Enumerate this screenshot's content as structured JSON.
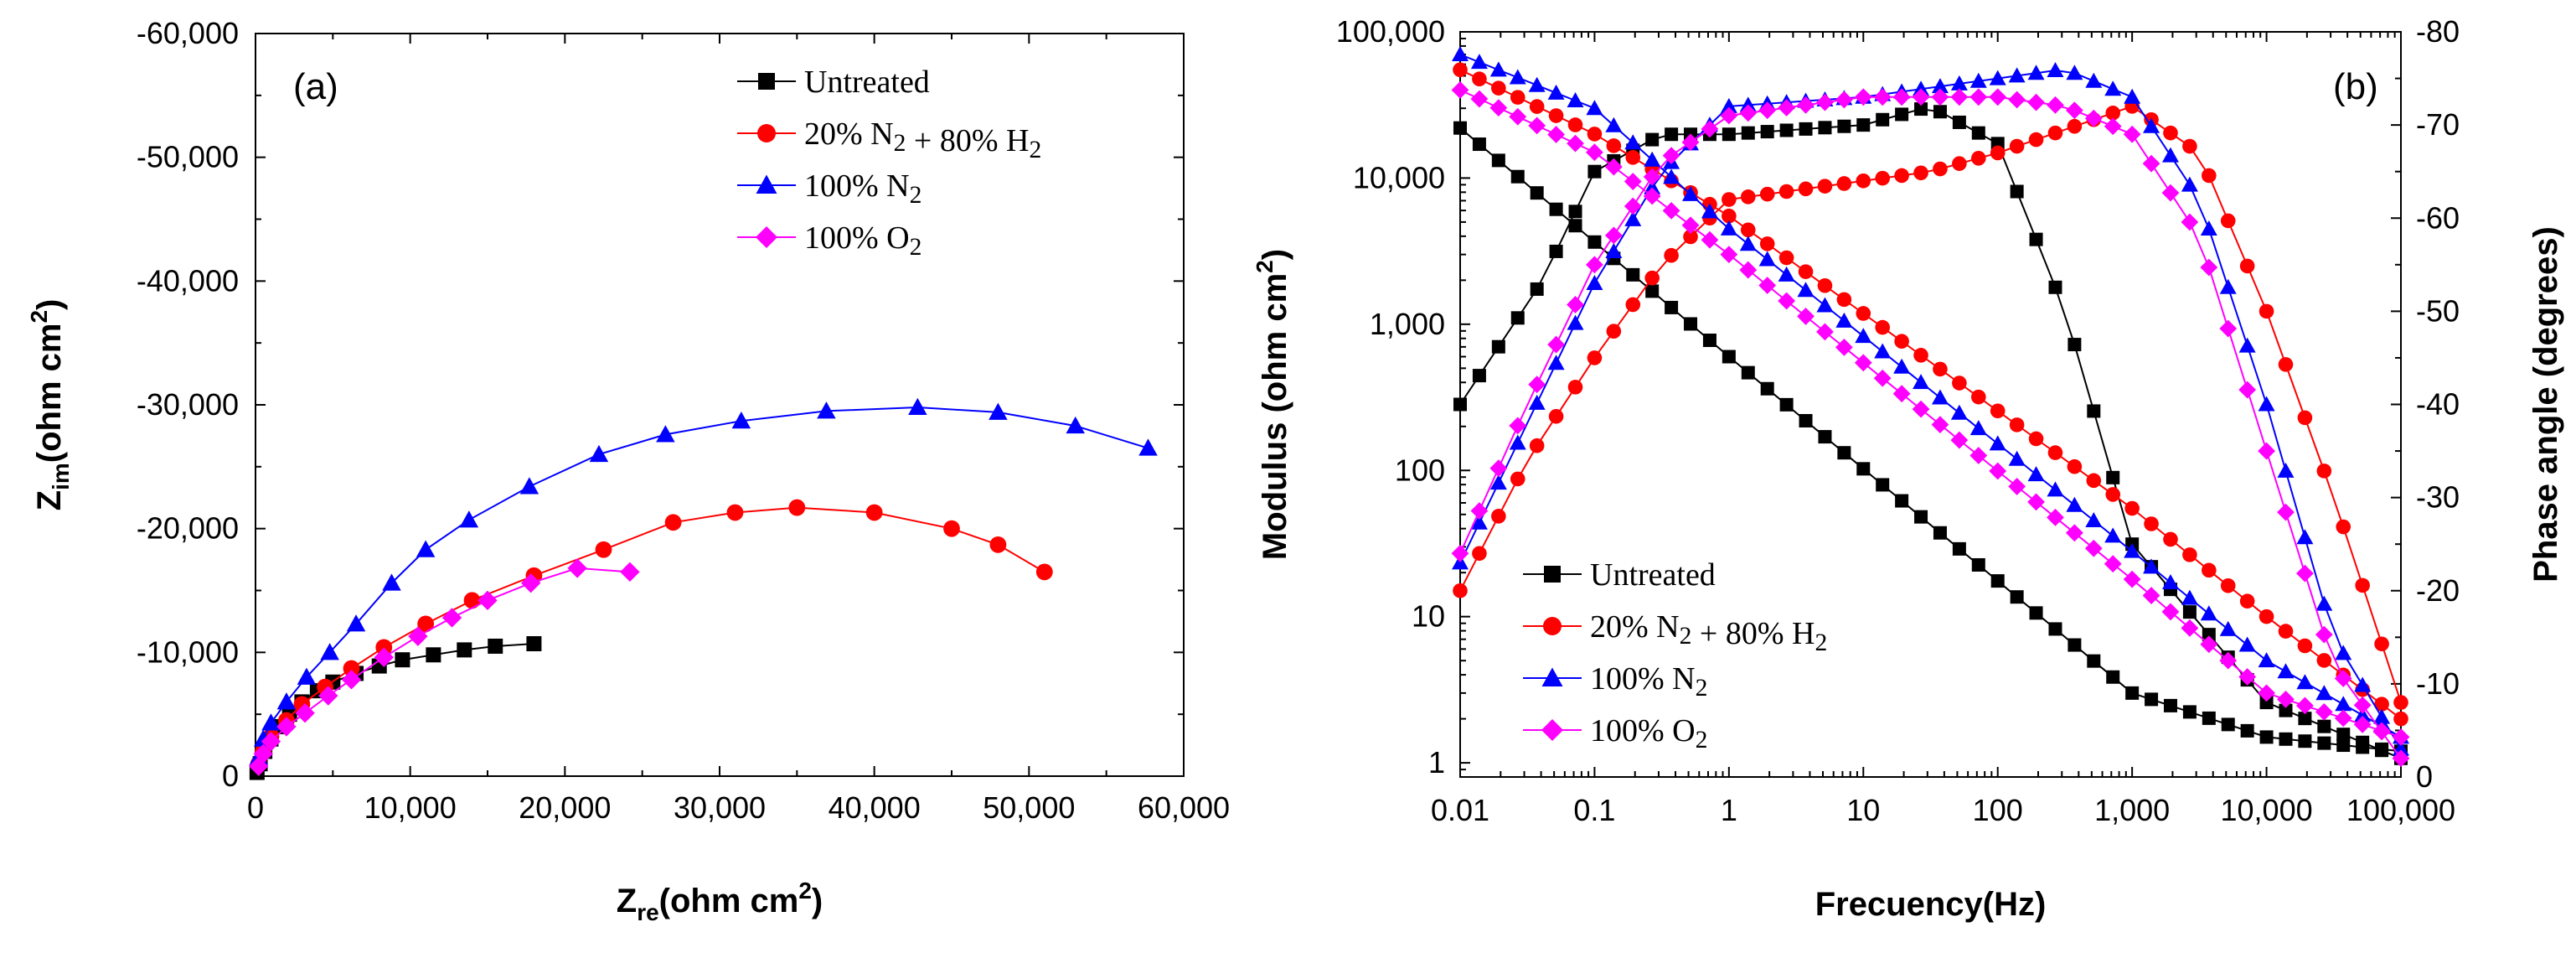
{
  "colors": {
    "untreated": "#000000",
    "n2h2": "#ff0000",
    "n2": "#0000ff",
    "o2": "#ff00ff",
    "axis": "#000000"
  },
  "chart_data": [
    {
      "panel": "(a)",
      "type": "scatter",
      "xlabel_main": "Z",
      "xlabel_sub": "re",
      "xlabel_unit": "(ohm cm",
      "xlabel_sup": "2",
      "xlabel_close": ")",
      "ylabel_main": "Z",
      "ylabel_sub": "im",
      "ylabel_unit": "(ohm cm",
      "ylabel_sup": "2",
      "ylabel_close": ")",
      "xlim": [
        0,
        60000
      ],
      "ylim": [
        0,
        -60000
      ],
      "x_ticks": [
        "0",
        "10,000",
        "20,000",
        "30,000",
        "40,000",
        "50,000",
        "60,000"
      ],
      "y_ticks": [
        "0",
        "-10,000",
        "-20,000",
        "-30,000",
        "-40,000",
        "-50,000",
        "-60,000"
      ],
      "legend": [
        {
          "label": "Untreated",
          "formula": [
            [
              "Untreated",
              ""
            ]
          ]
        },
        {
          "label": "20% N2 + 80% H2",
          "formula": [
            [
              "20% N",
              "2"
            ],
            [
              " + 80% H",
              "2"
            ]
          ]
        },
        {
          "label": "100% N2",
          "formula": [
            [
              "100% N",
              "2"
            ]
          ]
        },
        {
          "label": "100% O2",
          "formula": [
            [
              "100% O",
              "2"
            ]
          ]
        }
      ],
      "series": [
        {
          "name": "Untreated",
          "marker": "square",
          "x": [
            100,
            300,
            600,
            1000,
            1500,
            2200,
            3000,
            4000,
            5000,
            6500,
            8000,
            9500,
            11500,
            13500,
            15500,
            18000
          ],
          "y": [
            -300,
            -1000,
            -2000,
            -3000,
            -4000,
            -5000,
            -6000,
            -6900,
            -7600,
            -8300,
            -8900,
            -9400,
            -9800,
            -10200,
            -10500,
            -10700
          ]
        },
        {
          "name": "20% N2 + 80% H2",
          "marker": "circle",
          "x": [
            200,
            500,
            1000,
            2000,
            3000,
            4500,
            6200,
            8300,
            11000,
            14000,
            18000,
            22500,
            27000,
            31000,
            35000,
            40000,
            45000,
            48000,
            51000
          ],
          "y": [
            -1000,
            -2000,
            -3200,
            -4500,
            -5800,
            -7200,
            -8700,
            -10400,
            -12300,
            -14200,
            -16200,
            -18300,
            -20500,
            -21300,
            -21700,
            -21300,
            -20000,
            -18700,
            -16500
          ]
        },
        {
          "name": "100% N2",
          "marker": "triangle",
          "x": [
            200,
            500,
            1000,
            2000,
            3300,
            4800,
            6500,
            8800,
            11000,
            13800,
            17700,
            22200,
            26500,
            31400,
            36900,
            42800,
            48000,
            53000,
            57700
          ],
          "y": [
            -1500,
            -3000,
            -4300,
            -6000,
            -8000,
            -10000,
            -12300,
            -15600,
            -18300,
            -20700,
            -23400,
            -26000,
            -27600,
            -28700,
            -29500,
            -29800,
            -29400,
            -28300,
            -26500
          ]
        },
        {
          "name": "100% O2",
          "marker": "diamond",
          "x": [
            200,
            500,
            1000,
            2000,
            3200,
            4700,
            6200,
            8300,
            10500,
            12700,
            15000,
            17800,
            20800,
            24200
          ],
          "y": [
            -800,
            -1800,
            -2800,
            -4000,
            -5100,
            -6500,
            -7800,
            -9600,
            -11300,
            -12800,
            -14200,
            -15600,
            -16800,
            -16500
          ]
        }
      ]
    },
    {
      "panel": "(b)",
      "type": "line",
      "xlabel": "Frecuency(Hz)",
      "ylabel_left_main": "Modulus (ohm cm",
      "ylabel_left_sup": "2",
      "ylabel_left_close": ")",
      "ylabel_right": "Phase angle (degrees)",
      "xlim": [
        0.01,
        100000
      ],
      "ylim_left": [
        0.8,
        100000
      ],
      "ylim_right": [
        0,
        -80
      ],
      "x_ticks": [
        "0.01",
        "0.1",
        "1",
        "10",
        "100",
        "1,000",
        "10,000",
        "100,000"
      ],
      "y_left_ticks": [
        "1",
        "10",
        "100",
        "1,000",
        "10,000",
        "100,000"
      ],
      "y_right_ticks": [
        "0",
        "-10",
        "-20",
        "-30",
        "-40",
        "-50",
        "-60",
        "-70",
        "-80"
      ],
      "legend": [
        {
          "label": "Untreated",
          "formula": [
            [
              "Untreated",
              ""
            ]
          ]
        },
        {
          "label": "20% N2 + 80% H2",
          "formula": [
            [
              "20% N",
              "2"
            ],
            [
              " + 80% H",
              "2"
            ]
          ]
        },
        {
          "label": "100% N2",
          "formula": [
            [
              "100% N",
              "2"
            ]
          ]
        },
        {
          "label": "100% O2",
          "formula": [
            [
              "100% O",
              "2"
            ]
          ]
        }
      ],
      "series": [
        {
          "name": "Untreated",
          "quantity": "modulus",
          "marker": "square",
          "anchors": [
            [
              -2,
              22000
            ],
            [
              -1.5,
              9000
            ],
            [
              0,
              600
            ],
            [
              3,
              3
            ],
            [
              4,
              1.5
            ],
            [
              5,
              1.2
            ]
          ]
        },
        {
          "name": "Untreated",
          "quantity": "phase",
          "marker": "square",
          "anchors": [
            [
              -2,
              -40
            ],
            [
              -1.4,
              -53
            ],
            [
              -1,
              -65
            ],
            [
              -0.5,
              -69
            ],
            [
              0,
              -69
            ],
            [
              1,
              -70
            ],
            [
              1.5,
              -72
            ],
            [
              2,
              -68
            ],
            [
              2.5,
              -50
            ],
            [
              3,
              -25
            ],
            [
              4,
              -8
            ],
            [
              5,
              -2
            ]
          ]
        },
        {
          "name": "20% N2 + 80% H2",
          "quantity": "modulus",
          "marker": "circle",
          "anchors": [
            [
              -2,
              55000
            ],
            [
              -1,
              20000
            ],
            [
              0,
              5500
            ],
            [
              3,
              55
            ],
            [
              4,
              10
            ],
            [
              5,
              2
            ]
          ]
        },
        {
          "name": "20% N2 + 80% H2",
          "quantity": "phase",
          "marker": "circle",
          "anchors": [
            [
              -2,
              -20
            ],
            [
              -1.5,
              -34
            ],
            [
              -1,
              -45
            ],
            [
              -0.5,
              -55
            ],
            [
              0,
              -62
            ],
            [
              1,
              -64
            ],
            [
              1.5,
              -65
            ],
            [
              2,
              -67
            ],
            [
              3,
              -72
            ],
            [
              3.5,
              -67
            ],
            [
              4,
              -50
            ],
            [
              4.5,
              -30
            ],
            [
              5,
              -8
            ]
          ]
        },
        {
          "name": "100% N2",
          "quantity": "modulus",
          "marker": "triangle",
          "anchors": [
            [
              -2,
              70000
            ],
            [
              -1,
              30000
            ],
            [
              0,
              4500
            ],
            [
              3,
              28
            ],
            [
              4,
              5
            ],
            [
              5,
              1.5
            ]
          ]
        },
        {
          "name": "100% N2",
          "quantity": "phase",
          "marker": "triangle",
          "anchors": [
            [
              -2,
              -23
            ],
            [
              -1.5,
              -38
            ],
            [
              -1,
              -53
            ],
            [
              -0.5,
              -65
            ],
            [
              0,
              -72
            ],
            [
              1,
              -73
            ],
            [
              2,
              -75
            ],
            [
              2.5,
              -76
            ],
            [
              3,
              -73
            ],
            [
              3.5,
              -62
            ],
            [
              4,
              -40
            ],
            [
              4.5,
              -15
            ],
            [
              5,
              -3
            ]
          ]
        },
        {
          "name": "100% O2",
          "quantity": "modulus",
          "marker": "diamond",
          "anchors": [
            [
              -2,
              40000
            ],
            [
              -1,
              15000
            ],
            [
              0,
              3000
            ],
            [
              3,
              18
            ],
            [
              4,
              3
            ],
            [
              5,
              1.5
            ]
          ]
        },
        {
          "name": "100% O2",
          "quantity": "phase",
          "marker": "diamond",
          "anchors": [
            [
              -2,
              -24
            ],
            [
              -1.5,
              -40
            ],
            [
              -1,
              -55
            ],
            [
              -0.5,
              -66
            ],
            [
              0,
              -71
            ],
            [
              1,
              -73
            ],
            [
              2,
              -73
            ],
            [
              2.5,
              -72
            ],
            [
              3,
              -69
            ],
            [
              3.5,
              -58
            ],
            [
              4,
              -35
            ],
            [
              4.5,
              -12
            ],
            [
              5,
              -2
            ]
          ]
        }
      ]
    }
  ]
}
